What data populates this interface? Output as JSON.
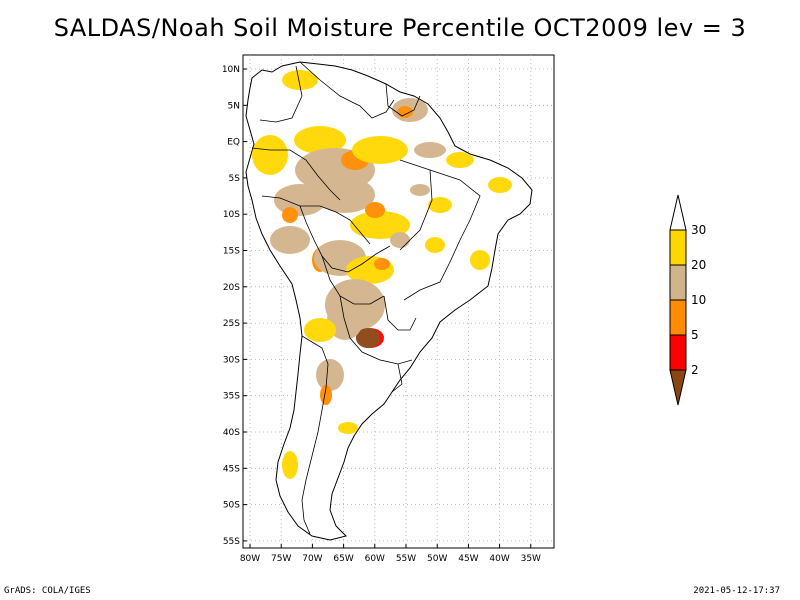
{
  "title": "SALDAS/Noah Soil Moisture Percentile OCT2009 lev = 3",
  "map": {
    "lat_labels": [
      "10N",
      "5N",
      "EQ",
      "5S",
      "10S",
      "15S",
      "20S",
      "25S",
      "30S",
      "35S",
      "40S",
      "45S",
      "50S",
      "55S"
    ],
    "lon_labels": [
      "80W",
      "75W",
      "70W",
      "65W",
      "60W",
      "55W",
      "50W",
      "45W",
      "40W",
      "35W"
    ]
  },
  "colorbar": {
    "colors": [
      "#8b4513",
      "#ff0000",
      "#ff8c00",
      "#d2b48c",
      "#ffd700",
      "#ffffff"
    ],
    "labels": [
      "2",
      "5",
      "10",
      "20",
      "30"
    ]
  },
  "footer": {
    "left": "GrADS: COLA/IGES",
    "right": "2021-05-12-17:37"
  }
}
